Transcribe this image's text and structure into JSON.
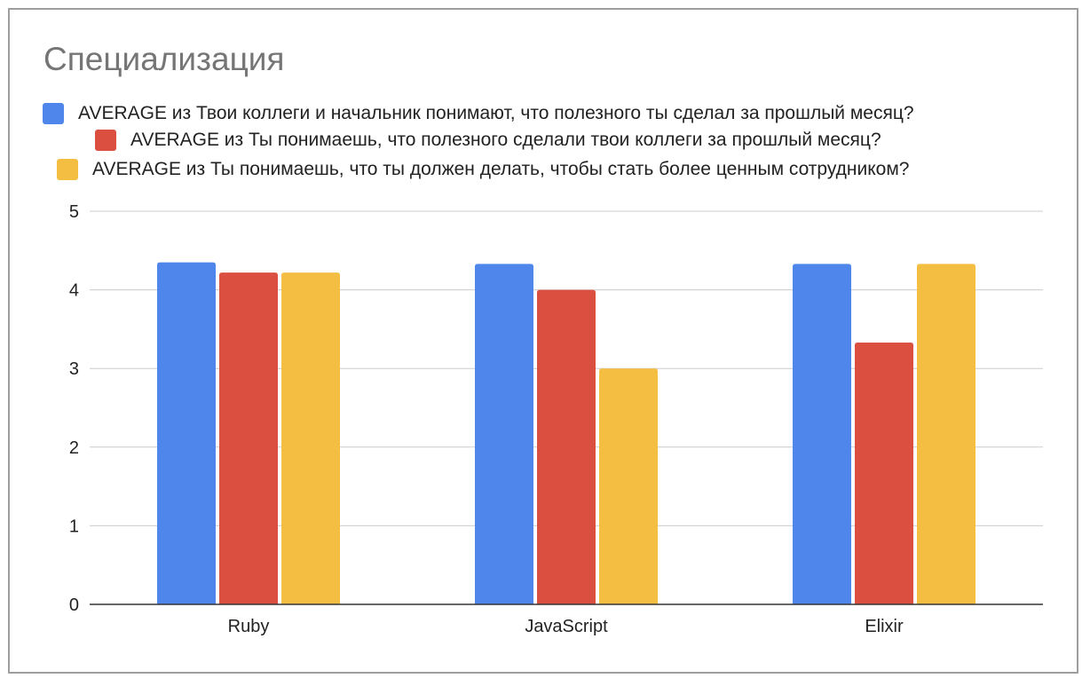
{
  "chart_data": {
    "type": "bar",
    "title": "Специализация",
    "categories": [
      "Ruby",
      "JavaScript",
      "Elixir"
    ],
    "series": [
      {
        "name": "AVERAGE из Твои коллеги и начальник понимают, что полезного ты сделал за прошлый месяц?",
        "color": "#4f86ec",
        "values": [
          4.35,
          4.33,
          4.33
        ]
      },
      {
        "name": "AVERAGE из Ты понимаешь, что полезного сделали твои коллеги за прошлый месяц?",
        "color": "#db4f40",
        "values": [
          4.22,
          4.0,
          3.33
        ]
      },
      {
        "name": "AVERAGE из Ты понимаешь, что ты должен делать, чтобы стать более ценным сотрудником?",
        "color": "#f3be42",
        "values": [
          4.22,
          3.0,
          4.33
        ]
      }
    ],
    "ylim": [
      0,
      5
    ],
    "yticks": [
      "0",
      "1",
      "2",
      "3",
      "4",
      "5"
    ],
    "grid": true,
    "legend_position": "top"
  }
}
